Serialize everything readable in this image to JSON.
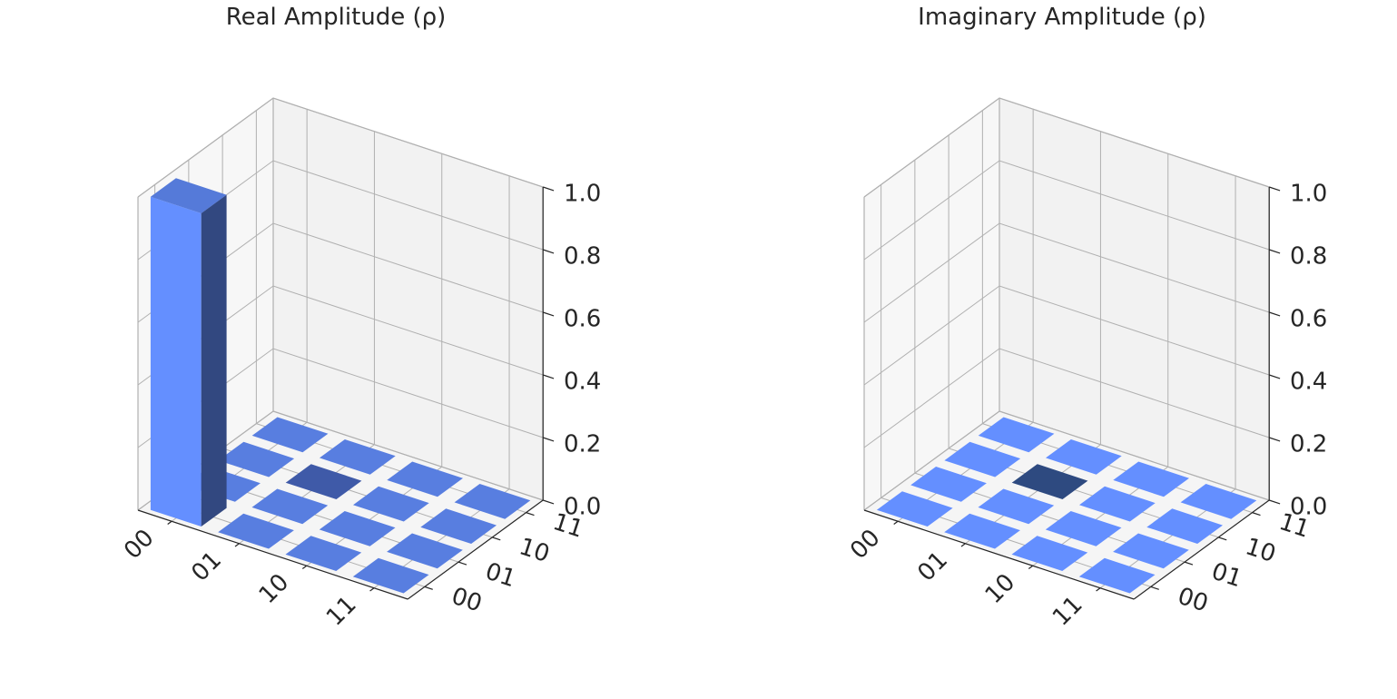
{
  "chart_data": [
    {
      "type": "bar3d",
      "title": "Real Amplitude (ρ)",
      "row_labels": [
        "00",
        "01",
        "10",
        "11"
      ],
      "col_labels": [
        "00",
        "01",
        "10",
        "11"
      ],
      "z_ticks": [
        "0.0",
        "0.2",
        "0.4",
        "0.6",
        "0.8",
        "1.0"
      ],
      "zlim": [
        0,
        1
      ],
      "values": [
        [
          1,
          0,
          0,
          0
        ],
        [
          0,
          0,
          0,
          0
        ],
        [
          0,
          0,
          0,
          0
        ],
        [
          0,
          0,
          0,
          0
        ]
      ],
      "bar_color": "#648fff",
      "highlight_color": "#3f5aa8",
      "pane_color": "#f2f2f2",
      "grid_color": "#b0b0b0"
    },
    {
      "type": "bar3d",
      "title": "Imaginary Amplitude (ρ)",
      "row_labels": [
        "00",
        "01",
        "10",
        "11"
      ],
      "col_labels": [
        "00",
        "01",
        "10",
        "11"
      ],
      "z_ticks": [
        "0.0",
        "0.2",
        "0.4",
        "0.6",
        "0.8",
        "1.0"
      ],
      "zlim": [
        0,
        1
      ],
      "values": [
        [
          0,
          0,
          0,
          0
        ],
        [
          0,
          0,
          0,
          0
        ],
        [
          0,
          0,
          0,
          0
        ],
        [
          0,
          0,
          0,
          0
        ]
      ],
      "bar_color": "#648fff",
      "highlight_color": "#2e4a80",
      "pane_color": "#f2f2f2",
      "grid_color": "#b0b0b0"
    }
  ]
}
